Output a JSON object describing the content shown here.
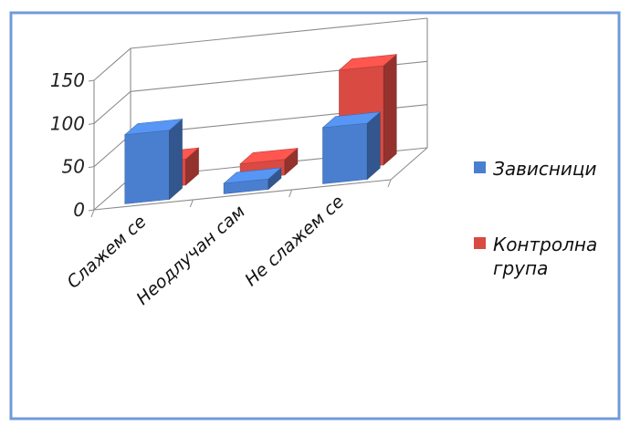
{
  "chart_data": {
    "type": "bar",
    "variant": "3d-clustered",
    "title": "",
    "xlabel": "",
    "ylabel": "",
    "ylim": [
      0,
      150
    ],
    "yticks": [
      "0",
      "50",
      "100",
      "150"
    ],
    "categories": [
      "Слажем се",
      "Неодлучан сам",
      "Не слажем се"
    ],
    "series": [
      {
        "name": "Зависници",
        "values": [
          80,
          12,
          65
        ],
        "color": "#4a7fd0"
      },
      {
        "name": "Контролна група",
        "values": [
          30,
          18,
          115
        ],
        "color": "#d94a43"
      }
    ],
    "legend": {
      "placement": "right",
      "labels": [
        "Зависници",
        "Контролна група"
      ]
    },
    "grid": true
  }
}
